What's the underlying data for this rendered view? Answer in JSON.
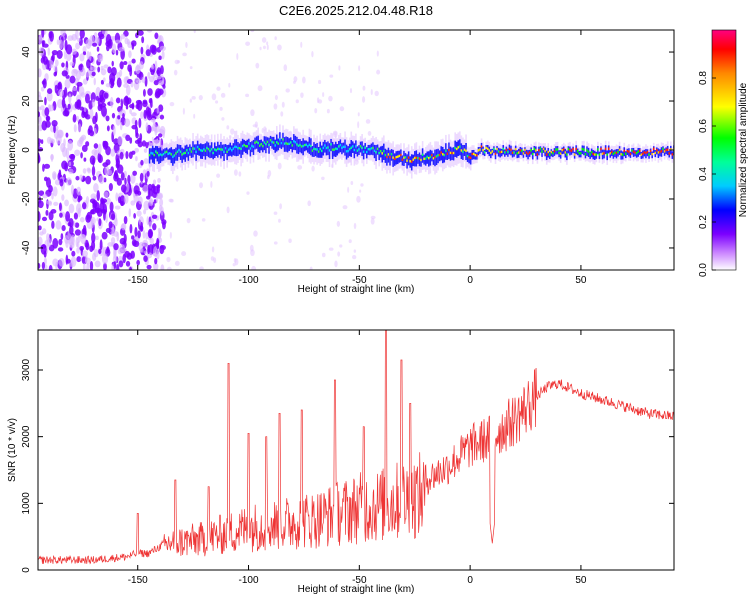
{
  "title": "C2E6.2025.212.04.48.R18",
  "colors": {
    "snr_line": "#ee3333",
    "spectral_low": "#7b00ff",
    "spectral_mid": "#00ccff",
    "spectral_high": "#ff2200"
  },
  "chart_data": [
    {
      "type": "heatmap",
      "xlabel": "Height of straight line (km)",
      "ylabel": "Frequency (Hz)",
      "xlim": [
        -195,
        92
      ],
      "ylim": [
        -49,
        49
      ],
      "xticks": [
        -150,
        -100,
        -50,
        0,
        50
      ],
      "xtick_labels": [
        "-150",
        "-100",
        "-50",
        "0",
        "50"
      ],
      "yticks": [
        -40,
        -20,
        0,
        20,
        40
      ],
      "ytick_labels": [
        "-40",
        "-20",
        "0",
        "20",
        "40"
      ],
      "colorbar": {
        "label": "Normalized spectral amplitude",
        "range": [
          0,
          1
        ],
        "ticks": [
          0.0,
          0.2,
          0.4,
          0.6,
          0.8
        ],
        "tick_labels": [
          "0.0",
          "0.2",
          "0.4",
          "0.6",
          "0.8"
        ]
      },
      "ridge": {
        "x": [
          -145,
          -135,
          -125,
          -115,
          -105,
          -95,
          -85,
          -78,
          -70,
          -62,
          -55,
          -48,
          -42,
          -35,
          -28,
          -20,
          -12,
          -5,
          0,
          5,
          10,
          20,
          30,
          50,
          70,
          92
        ],
        "y": [
          -2,
          -2,
          0,
          -1,
          1,
          2,
          3,
          2,
          0,
          1,
          0,
          0,
          -1,
          -3,
          -4,
          -3,
          -2,
          0,
          -3,
          0,
          -1,
          -1,
          -1,
          -1,
          -1,
          -1
        ]
      }
    },
    {
      "type": "line",
      "xlabel": "Height of straight line (km)",
      "ylabel": "SNR (10 * v/v)",
      "xlim": [
        -195,
        92
      ],
      "ylim": [
        0,
        3600
      ],
      "xticks": [
        -150,
        -100,
        -50,
        0,
        50
      ],
      "xtick_labels": [
        "-150",
        "-100",
        "-50",
        "0",
        "50"
      ],
      "yticks": [
        0,
        1000,
        2000,
        3000
      ],
      "ytick_labels": [
        "0",
        "1000",
        "2000",
        "3000"
      ],
      "envelope": {
        "x": [
          -195,
          -170,
          -155,
          -150,
          -145,
          -140,
          -135,
          -130,
          -120,
          -110,
          -100,
          -90,
          -80,
          -70,
          -60,
          -50,
          -40,
          -30,
          -20,
          -10,
          0,
          10,
          20,
          30,
          35,
          40,
          50,
          60,
          70,
          80,
          92
        ],
        "y": [
          150,
          150,
          200,
          250,
          250,
          350,
          500,
          500,
          550,
          650,
          750,
          800,
          850,
          900,
          1000,
          1100,
          1150,
          1250,
          1350,
          1550,
          1850,
          2000,
          2250,
          2600,
          2750,
          2800,
          2650,
          2550,
          2450,
          2350,
          2300
        ]
      },
      "spikes": [
        {
          "x": -150,
          "y": 850
        },
        {
          "x": -133,
          "y": 1350
        },
        {
          "x": -118,
          "y": 1250
        },
        {
          "x": -109,
          "y": 3100
        },
        {
          "x": -100,
          "y": 2050
        },
        {
          "x": -92,
          "y": 2000
        },
        {
          "x": -86,
          "y": 2350
        },
        {
          "x": -76,
          "y": 2400
        },
        {
          "x": -61,
          "y": 2850
        },
        {
          "x": -48,
          "y": 2150
        },
        {
          "x": -38,
          "y": 3600
        },
        {
          "x": -31,
          "y": 3150
        },
        {
          "x": -27,
          "y": 2500
        },
        {
          "x": 10,
          "y": 2300
        }
      ],
      "dip": {
        "x": 10,
        "y": 400
      }
    }
  ]
}
